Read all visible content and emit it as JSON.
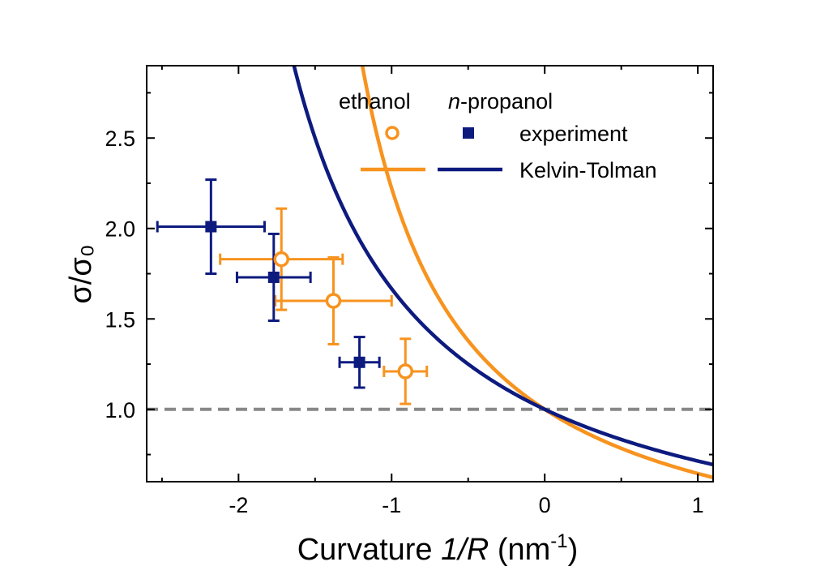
{
  "chart_data": {
    "type": "scatter",
    "xlabel_prefix": "Curvature ",
    "xlabel_var": "1/R",
    "xlabel_unit": " (nm",
    "xlabel_sup": "-1",
    "xlabel_close": ")",
    "ylabel": "σ/σ₀",
    "xlim": [
      -2.6,
      1.1
    ],
    "ylim": [
      0.6,
      2.9
    ],
    "x_ticks": [
      -2,
      -1,
      0,
      1
    ],
    "x_tick_labels": [
      "-2",
      "-1",
      "0",
      "1"
    ],
    "y_ticks": [
      1.0,
      1.5,
      2.0,
      2.5
    ],
    "y_tick_labels": [
      "1.0",
      "1.5",
      "2.0",
      "2.5"
    ],
    "reference_line": {
      "y": 1.0,
      "color": "#888888",
      "style": "dashed"
    },
    "legend": {
      "header_ethanol": "ethanol",
      "header_n": "n",
      "header_propanol": "-propanol",
      "row_experiment": "experiment",
      "row_model": "Kelvin-Tolman",
      "placement": "top-right"
    },
    "series": [
      {
        "name": "ethanol",
        "color": "#F7931E",
        "marker": "open-circle",
        "points": [
          {
            "x": -1.72,
            "y": 1.83,
            "xerr": 0.4,
            "yerr": 0.28
          },
          {
            "x": -1.38,
            "y": 1.6,
            "xerr": 0.38,
            "yerr": 0.24
          },
          {
            "x": -0.91,
            "y": 1.21,
            "xerr": 0.14,
            "yerr": 0.18
          }
        ]
      },
      {
        "name": "n-propanol",
        "color": "#0D1B7F",
        "marker": "filled-square",
        "points": [
          {
            "x": -2.18,
            "y": 2.01,
            "xerr": 0.35,
            "yerr": 0.26
          },
          {
            "x": -1.77,
            "y": 1.73,
            "xerr": 0.24,
            "yerr": 0.24
          },
          {
            "x": -1.21,
            "y": 1.26,
            "xerr": 0.13,
            "yerr": 0.14
          }
        ]
      }
    ],
    "model_curves": [
      {
        "name": "ethanol",
        "color": "#F7931E",
        "delta": 0.275
      },
      {
        "name": "n-propanol",
        "color": "#0D1B7F",
        "delta": 0.2
      }
    ]
  }
}
